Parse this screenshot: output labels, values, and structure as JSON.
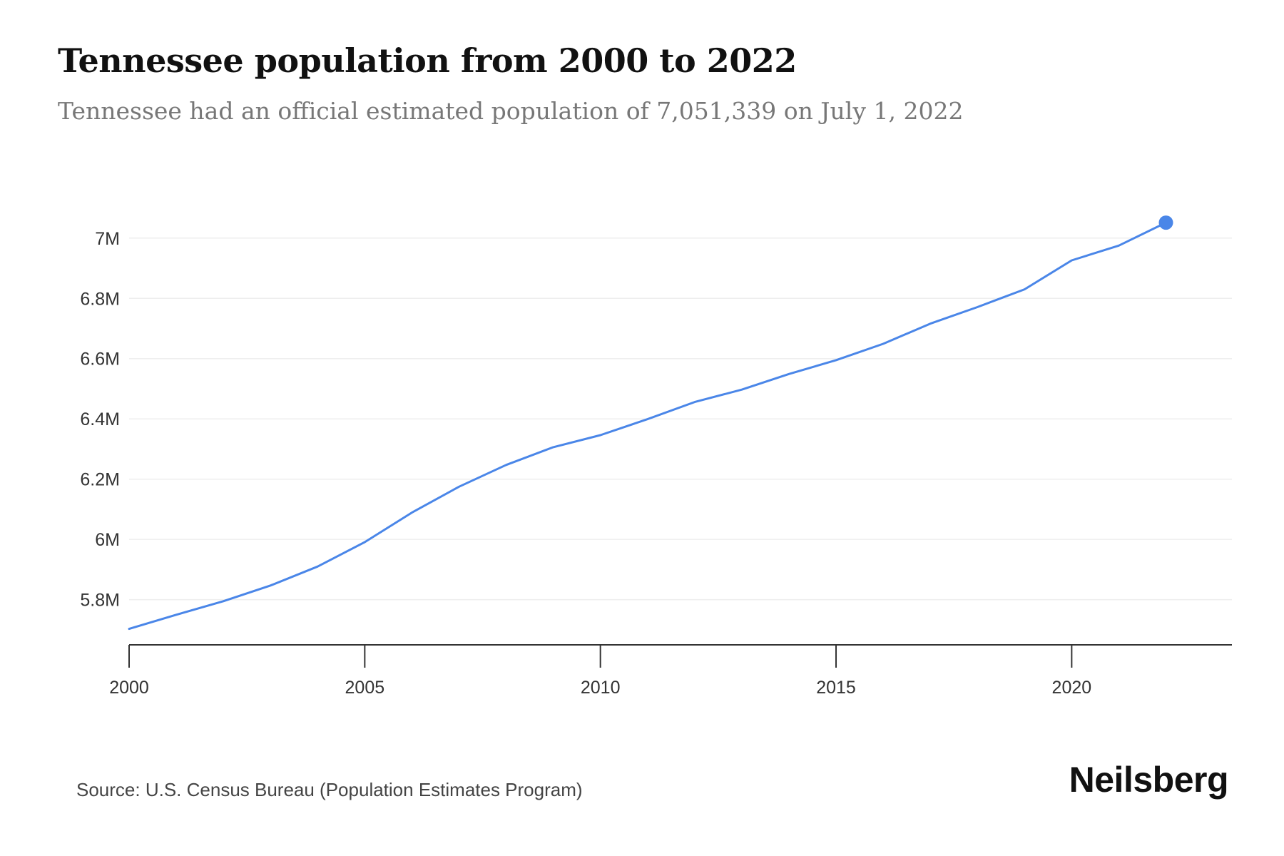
{
  "header": {
    "title": "Tennessee population from 2000 to 2022",
    "subtitle": "Tennessee had an official estimated population of 7,051,339 on July 1, 2022"
  },
  "footer": {
    "source": "Source: U.S. Census Bureau (Population Estimates Program)",
    "brand": "Neilsberg"
  },
  "colors": {
    "line": "#4a86e8",
    "grid": "#eeeeee",
    "axis": "#333333"
  },
  "chart_data": {
    "type": "line",
    "title": "Tennessee population from 2000 to 2022",
    "xlabel": "",
    "ylabel": "",
    "x": [
      2000,
      2001,
      2002,
      2003,
      2004,
      2005,
      2006,
      2007,
      2008,
      2009,
      2010,
      2011,
      2012,
      2013,
      2014,
      2015,
      2016,
      2017,
      2018,
      2019,
      2020,
      2021,
      2022
    ],
    "series": [
      {
        "values": [
          5703000,
          5750000,
          5795000,
          5847000,
          5910000,
          5991000,
          6089000,
          6175000,
          6247000,
          6306000,
          6346000,
          6399000,
          6456000,
          6497000,
          6549000,
          6595000,
          6649000,
          6716000,
          6771000,
          6830000,
          6926000,
          6975000,
          7051339
        ],
        "marker_last": true
      }
    ],
    "xlim": [
      2000,
      2023.4
    ],
    "ylim": [
      5650000,
      7080000
    ],
    "xticks": [
      2000,
      2005,
      2010,
      2015,
      2020
    ],
    "xtick_labels": [
      "2000",
      "2005",
      "2010",
      "2015",
      "2020"
    ],
    "yticks": [
      5800000,
      6000000,
      6200000,
      6400000,
      6600000,
      6800000,
      7000000
    ],
    "ytick_labels": [
      "5.8M",
      "6M",
      "6.2M",
      "6.4M",
      "6.6M",
      "6.8M",
      "7M"
    ],
    "grid": true,
    "legend": "none"
  }
}
